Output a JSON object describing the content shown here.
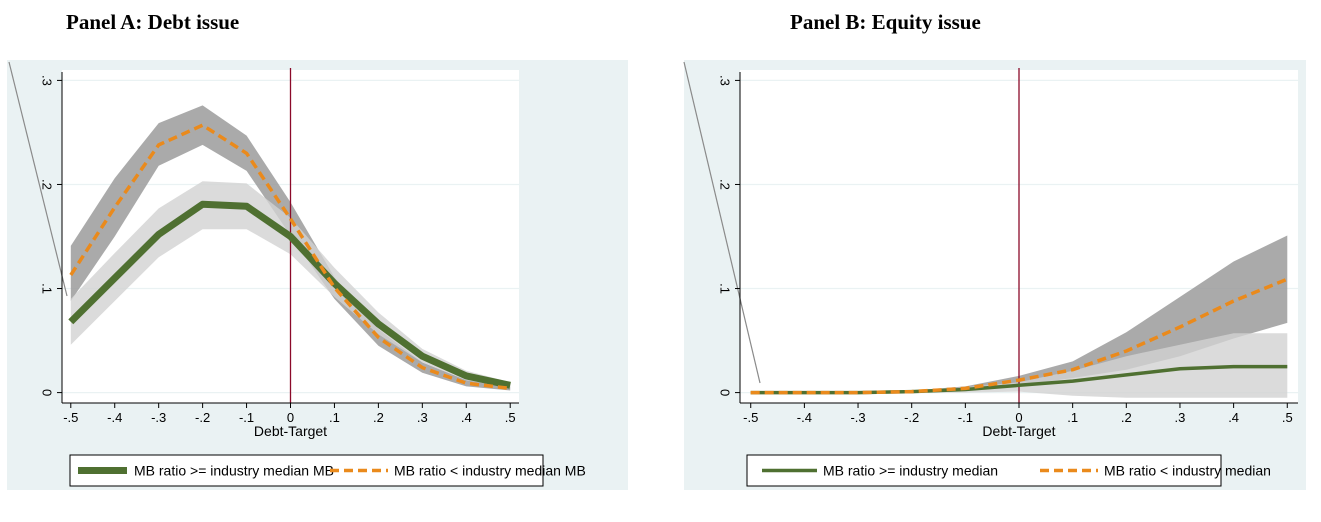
{
  "panels": [
    {
      "title": "Panel A: Debt issue",
      "chart_data": {
        "type": "line",
        "x": [
          -0.5,
          -0.4,
          -0.3,
          -0.2,
          -0.1,
          0,
          0.1,
          0.2,
          0.3,
          0.4,
          0.5
        ],
        "x_tick_labels": [
          "-.5",
          "-.4",
          "-.3",
          "-.2",
          "-.1",
          "0",
          ".1",
          ".2",
          ".3",
          ".4",
          ".5"
        ],
        "y_ticks": [
          0,
          0.1,
          0.2,
          0.3
        ],
        "y_tick_labels": [
          "0",
          ".1",
          ".2",
          ".3"
        ],
        "xlabel": "Debt-Target",
        "ylabel": "",
        "xlim": [
          -0.52,
          0.52
        ],
        "ylim": [
          -0.01,
          0.31
        ],
        "vline_x": 0,
        "grid": true,
        "legend_position": "bottom",
        "series": [
          {
            "name": "MB ratio >= industry median MB",
            "style": "solid",
            "color": "#4f7031",
            "values": [
              0.068,
              0.11,
              0.152,
              0.181,
              0.179,
              0.15,
              0.105,
              0.066,
              0.035,
              0.016,
              0.007
            ],
            "ci_lower": [
              0.046,
              0.088,
              0.13,
              0.157,
              0.157,
              0.133,
              0.092,
              0.056,
              0.029,
              0.012,
              0.004
            ],
            "ci_upper": [
              0.09,
              0.134,
              0.177,
              0.203,
              0.201,
              0.168,
              0.12,
              0.077,
              0.042,
              0.021,
              0.01
            ],
            "ci_color": "#d2d2d2"
          },
          {
            "name": "MB ratio < industry median MB",
            "style": "dashed",
            "color": "#ea8a1c",
            "values": [
              0.113,
              0.178,
              0.238,
              0.257,
              0.23,
              0.167,
              0.101,
              0.053,
              0.024,
              0.009,
              0.004
            ],
            "ci_lower": [
              0.088,
              0.15,
              0.218,
              0.238,
              0.213,
              0.151,
              0.09,
              0.045,
              0.019,
              0.006,
              0.002
            ],
            "ci_upper": [
              0.141,
              0.206,
              0.259,
              0.276,
              0.247,
              0.183,
              0.111,
              0.061,
              0.029,
              0.012,
              0.006
            ],
            "ci_color": "#9b9b9b"
          }
        ]
      }
    },
    {
      "title": "Panel B: Equity issue",
      "chart_data": {
        "type": "line",
        "x": [
          -0.5,
          -0.4,
          -0.3,
          -0.2,
          -0.1,
          0,
          0.1,
          0.2,
          0.3,
          0.4,
          0.5
        ],
        "x_tick_labels": [
          "-.5",
          "-.4",
          "-.3",
          "-.2",
          "-.1",
          "0",
          ".1",
          ".2",
          ".3",
          ".4",
          ".5"
        ],
        "y_ticks": [
          0,
          0.1,
          0.2,
          0.3
        ],
        "y_tick_labels": [
          "0",
          ".1",
          ".2",
          ".3"
        ],
        "xlabel": "Debt-Target",
        "ylabel": "",
        "xlim": [
          -0.52,
          0.52
        ],
        "ylim": [
          -0.01,
          0.31
        ],
        "vline_x": 0,
        "grid": true,
        "legend_position": "bottom",
        "series": [
          {
            "name": "MB ratio >= industry median",
            "style": "solid",
            "color": "#4f7031",
            "values": [
              0,
              0,
              0,
              0.001,
              0.003,
              0.007,
              0.011,
              0.017,
              0.023,
              0.025,
              0.025
            ],
            "ci_lower": [
              0,
              0,
              0,
              0,
              0,
              0.001,
              -0.003,
              -0.005,
              -0.005,
              -0.005,
              -0.005
            ],
            "ci_upper": [
              0,
              0,
              0.001,
              0.002,
              0.005,
              0.01,
              0.021,
              0.035,
              0.046,
              0.057,
              0.057
            ],
            "ci_color": "#d2d2d2"
          },
          {
            "name": "MB ratio < industry median",
            "style": "dashed",
            "color": "#ea8a1c",
            "values": [
              0,
              0,
              0,
              0.001,
              0.004,
              0.012,
              0.022,
              0.04,
              0.063,
              0.088,
              0.109
            ],
            "ci_lower": [
              0,
              0,
              0,
              0,
              0.002,
              0.007,
              0.014,
              0.022,
              0.035,
              0.052,
              0.067
            ],
            "ci_upper": [
              0,
              0,
              0.001,
              0.002,
              0.006,
              0.016,
              0.03,
              0.058,
              0.092,
              0.126,
              0.151
            ],
            "ci_color": "#9b9b9b"
          }
        ]
      }
    }
  ],
  "colors": {
    "plot_region": "#eaf2f3",
    "plot_area": "#ffffff",
    "grid": "#eaf2f3",
    "vline": "#8b0a2a",
    "axis": "#000000"
  }
}
